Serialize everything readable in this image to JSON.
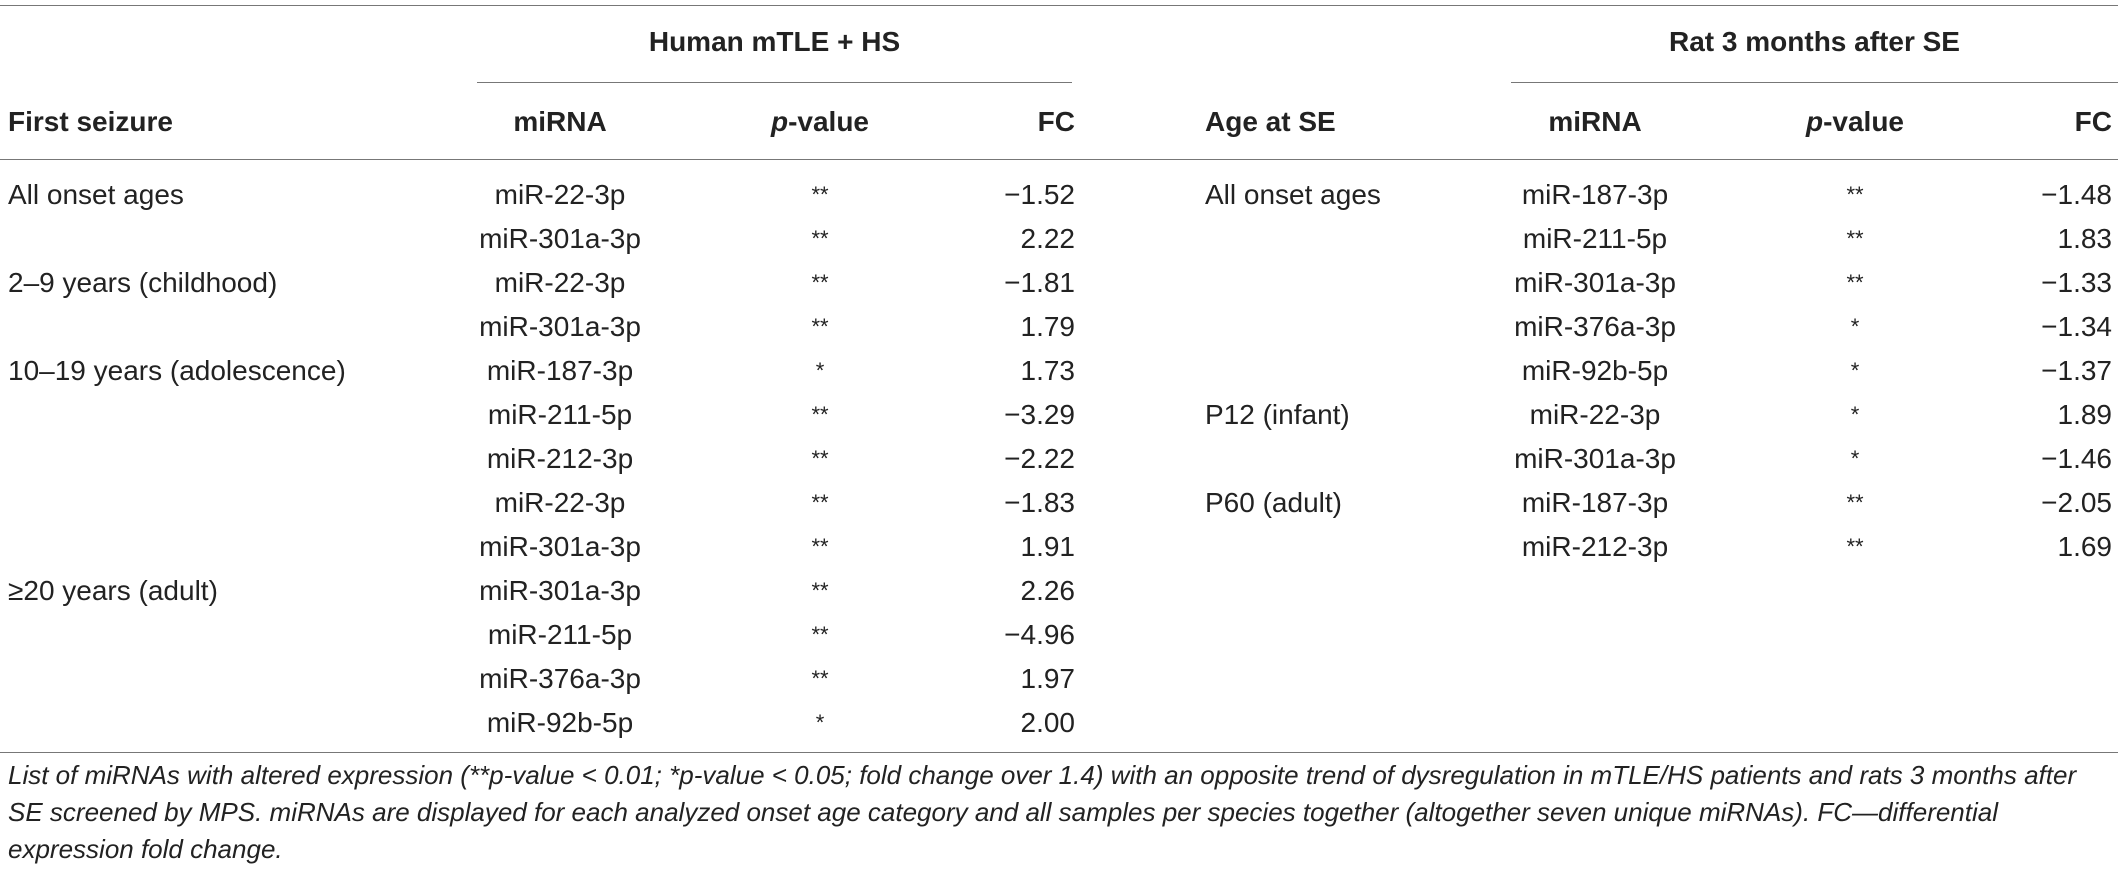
{
  "human_header": "Human mTLE + HS",
  "rat_header": "Rat 3 months after SE",
  "human_columns": [
    "First seizure",
    "miRNA",
    "p-value",
    "FC"
  ],
  "rat_columns": [
    "Age at SE",
    "miRNA",
    "p-value",
    "FC"
  ],
  "human_rows": [
    [
      "All onset ages",
      "miR-22-3p",
      "**",
      "−1.52"
    ],
    [
      "",
      "miR-301a-3p",
      "**",
      "2.22"
    ],
    [
      "2–9 years (childhood)",
      "miR-22-3p",
      "**",
      "−1.81"
    ],
    [
      "",
      "miR-301a-3p",
      "**",
      "1.79"
    ],
    [
      "10–19 years (adolescence)",
      "miR-187-3p",
      "*",
      "1.73"
    ],
    [
      "",
      "miR-211-5p",
      "**",
      "−3.29"
    ],
    [
      "",
      "miR-212-3p",
      "**",
      "−2.22"
    ],
    [
      "",
      "miR-22-3p",
      "**",
      "−1.83"
    ],
    [
      "",
      "miR-301a-3p",
      "**",
      "1.91"
    ],
    [
      "≥20 years (adult)",
      "miR-301a-3p",
      "**",
      "2.26"
    ],
    [
      "",
      "miR-211-5p",
      "**",
      "−4.96"
    ],
    [
      "",
      "miR-376a-3p",
      "**",
      "1.97"
    ],
    [
      "",
      "miR-92b-5p",
      "*",
      "2.00"
    ]
  ],
  "rat_rows": [
    [
      "All onset ages",
      "miR-187-3p",
      "**",
      "−1.48"
    ],
    [
      "",
      "miR-211-5p",
      "**",
      "1.83"
    ],
    [
      "",
      "miR-301a-3p",
      "**",
      "−1.33"
    ],
    [
      "",
      "miR-376a-3p",
      "*",
      "−1.34"
    ],
    [
      "",
      "miR-92b-5p",
      "*",
      "−1.37"
    ],
    [
      "P12 (infant)",
      "miR-22-3p",
      "*",
      "1.89"
    ],
    [
      "",
      "miR-301a-3p",
      "*",
      "−1.46"
    ],
    [
      "P60 (adult)",
      "miR-187-3p",
      "**",
      "−2.05"
    ],
    [
      "",
      "miR-212-3p",
      "**",
      "1.69"
    ]
  ],
  "caption": "List of miRNAs with altered expression (**p-value < 0.01; *p-value < 0.05; fold change over 1.4) with an opposite trend of dysregulation in mTLE/HS patients and rats 3 months after SE screened by MPS. miRNAs are displayed for each analyzed onset age category and all samples per species together (altogether seven unique miRNAs). FC—differential expression fold change."
}
